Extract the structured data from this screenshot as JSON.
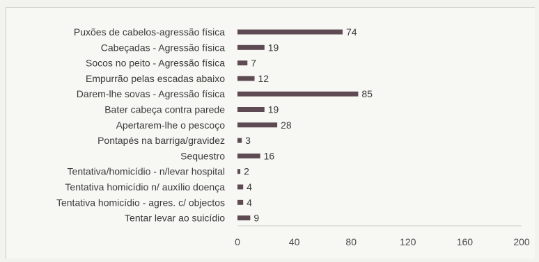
{
  "chart_data": {
    "type": "bar",
    "orientation": "horizontal",
    "categories": [
      "Puxões de cabelos-agressão física",
      "Cabeçadas - Agressão física",
      "Socos no peito - Agressão física",
      "Empurrão pelas escadas abaixo",
      "Darem-lhe sovas - Agressão física",
      "Bater cabeça contra parede",
      "Apertarem-lhe o pescoço",
      "Pontapés na barriga/gravidez",
      "Sequestro",
      "Tentativa/homicídio - n/levar hospital",
      "Tentativa homicídio n/ auxílio doença",
      "Tentativa homicídio - agres. c/ objectos",
      "Tentar levar ao suicídio"
    ],
    "values": [
      74,
      19,
      7,
      12,
      85,
      19,
      28,
      3,
      16,
      2,
      4,
      4,
      9
    ],
    "value_labels": [
      "74",
      "19",
      "7",
      "12",
      "85",
      "19",
      "28",
      "3",
      "16",
      "2",
      "4",
      "4",
      "9"
    ],
    "xlim": [
      0,
      200
    ],
    "xticks": [
      "0",
      "40",
      "80",
      "120",
      "160",
      "200"
    ],
    "bar_color": "#5e4a52",
    "grid": false,
    "legend": "none"
  }
}
